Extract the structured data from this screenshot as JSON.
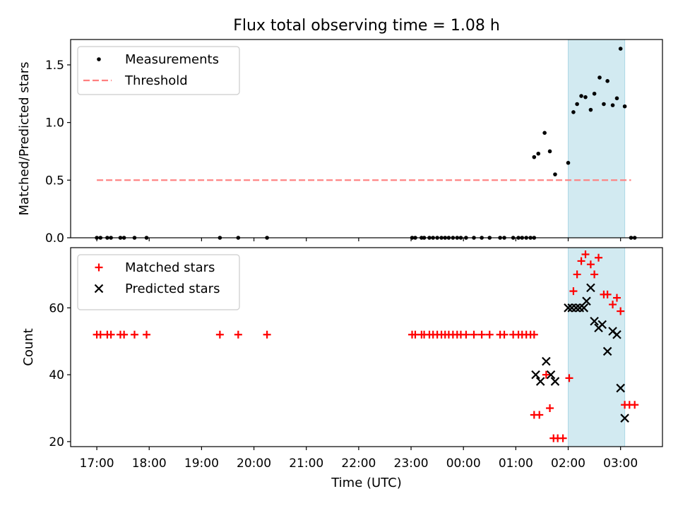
{
  "chart_data": {
    "title": "Flux total observing time = 1.08 h",
    "xlabel": "Time (UTC)",
    "x_ticks": [
      "17:00",
      "18:00",
      "19:00",
      "20:00",
      "21:00",
      "22:00",
      "23:00",
      "00:00",
      "01:00",
      "02:00",
      "03:00"
    ],
    "x_tick_hours": [
      0,
      1,
      2,
      3,
      4,
      5,
      6,
      7,
      8,
      9,
      10
    ],
    "x_range_hours": [
      -0.5,
      10.8
    ],
    "highlight_span_hours": [
      9.0,
      10.08
    ],
    "highlight_color": "#add8e6",
    "panels": [
      {
        "type": "scatter",
        "ylabel": "Matched/Predicted stars",
        "ylim": [
          0,
          1.72
        ],
        "y_ticks": [
          0.0,
          0.5,
          1.0,
          1.5
        ],
        "y_tick_labels": [
          "0.0",
          "0.5",
          "1.0",
          "1.5"
        ],
        "legend": [
          "Measurements",
          "Threshold"
        ],
        "threshold": {
          "name": "Threshold",
          "value": 0.5,
          "x_range": [
            0.0,
            10.2
          ],
          "color": "#ff7f7f",
          "style": "dashed"
        },
        "series": [
          {
            "name": "Measurements",
            "marker": "dot",
            "color": "#000000",
            "points": [
              [
                0.0,
                0
              ],
              [
                0.07,
                0
              ],
              [
                0.2,
                0
              ],
              [
                0.27,
                0
              ],
              [
                0.45,
                0
              ],
              [
                0.52,
                0
              ],
              [
                0.72,
                0
              ],
              [
                0.95,
                0
              ],
              [
                2.35,
                0
              ],
              [
                2.7,
                0
              ],
              [
                3.25,
                0
              ],
              [
                6.02,
                0
              ],
              [
                6.08,
                0
              ],
              [
                6.2,
                0
              ],
              [
                6.25,
                0
              ],
              [
                6.35,
                0
              ],
              [
                6.42,
                0
              ],
              [
                6.5,
                0
              ],
              [
                6.58,
                0
              ],
              [
                6.65,
                0
              ],
              [
                6.72,
                0
              ],
              [
                6.8,
                0
              ],
              [
                6.88,
                0
              ],
              [
                6.95,
                0
              ],
              [
                7.05,
                0
              ],
              [
                7.2,
                0
              ],
              [
                7.35,
                0
              ],
              [
                7.5,
                0
              ],
              [
                7.7,
                0
              ],
              [
                7.78,
                0
              ],
              [
                7.95,
                0
              ],
              [
                8.05,
                0
              ],
              [
                8.12,
                0
              ],
              [
                8.2,
                0
              ],
              [
                8.28,
                0
              ],
              [
                8.35,
                0
              ],
              [
                8.35,
                0.7
              ],
              [
                8.43,
                0.73
              ],
              [
                8.55,
                0.91
              ],
              [
                8.65,
                0.75
              ],
              [
                8.75,
                0.55
              ],
              [
                9.0,
                0.65
              ],
              [
                9.1,
                1.09
              ],
              [
                9.17,
                1.16
              ],
              [
                9.25,
                1.23
              ],
              [
                9.33,
                1.22
              ],
              [
                9.43,
                1.11
              ],
              [
                9.5,
                1.25
              ],
              [
                9.6,
                1.39
              ],
              [
                9.68,
                1.16
              ],
              [
                9.75,
                1.36
              ],
              [
                9.85,
                1.15
              ],
              [
                9.93,
                1.21
              ],
              [
                10.0,
                1.64
              ],
              [
                10.08,
                1.14
              ],
              [
                10.2,
                0
              ],
              [
                10.27,
                0
              ]
            ]
          }
        ]
      },
      {
        "type": "scatter",
        "ylabel": "Count",
        "ylim": [
          18.5,
          78
        ],
        "y_ticks": [
          20,
          40,
          60
        ],
        "y_tick_labels": [
          "20",
          "40",
          "60"
        ],
        "legend": [
          "Matched stars",
          "Predicted stars"
        ],
        "series": [
          {
            "name": "Matched stars",
            "marker": "plus",
            "color": "#ff0000",
            "points": [
              [
                0.0,
                52
              ],
              [
                0.07,
                52
              ],
              [
                0.2,
                52
              ],
              [
                0.27,
                52
              ],
              [
                0.45,
                52
              ],
              [
                0.52,
                52
              ],
              [
                0.72,
                52
              ],
              [
                0.95,
                52
              ],
              [
                2.35,
                52
              ],
              [
                2.7,
                52
              ],
              [
                3.25,
                52
              ],
              [
                6.02,
                52
              ],
              [
                6.08,
                52
              ],
              [
                6.2,
                52
              ],
              [
                6.25,
                52
              ],
              [
                6.35,
                52
              ],
              [
                6.42,
                52
              ],
              [
                6.5,
                52
              ],
              [
                6.58,
                52
              ],
              [
                6.65,
                52
              ],
              [
                6.72,
                52
              ],
              [
                6.8,
                52
              ],
              [
                6.88,
                52
              ],
              [
                6.95,
                52
              ],
              [
                7.05,
                52
              ],
              [
                7.2,
                52
              ],
              [
                7.35,
                52
              ],
              [
                7.5,
                52
              ],
              [
                7.7,
                52
              ],
              [
                7.78,
                52
              ],
              [
                7.95,
                52
              ],
              [
                8.05,
                52
              ],
              [
                8.12,
                52
              ],
              [
                8.2,
                52
              ],
              [
                8.28,
                52
              ],
              [
                8.35,
                52
              ],
              [
                8.35,
                28
              ],
              [
                8.45,
                28
              ],
              [
                8.58,
                40
              ],
              [
                8.65,
                30
              ],
              [
                8.72,
                21
              ],
              [
                8.8,
                21
              ],
              [
                8.9,
                21
              ],
              [
                9.02,
                39
              ],
              [
                9.1,
                65
              ],
              [
                9.17,
                70
              ],
              [
                9.25,
                74
              ],
              [
                9.33,
                76
              ],
              [
                9.43,
                73
              ],
              [
                9.5,
                70
              ],
              [
                9.58,
                75
              ],
              [
                9.68,
                64
              ],
              [
                9.75,
                64
              ],
              [
                9.85,
                61
              ],
              [
                9.93,
                63
              ],
              [
                10.0,
                59
              ],
              [
                10.08,
                31
              ],
              [
                10.17,
                31
              ],
              [
                10.27,
                31
              ]
            ]
          },
          {
            "name": "Predicted stars",
            "marker": "x",
            "color": "#000000",
            "points": [
              [
                8.38,
                40
              ],
              [
                8.47,
                38
              ],
              [
                8.58,
                44
              ],
              [
                8.67,
                40
              ],
              [
                8.75,
                38
              ],
              [
                9.0,
                60
              ],
              [
                9.07,
                60
              ],
              [
                9.15,
                60
              ],
              [
                9.22,
                60
              ],
              [
                9.3,
                60
              ],
              [
                9.35,
                62
              ],
              [
                9.43,
                66
              ],
              [
                9.5,
                56
              ],
              [
                9.58,
                54
              ],
              [
                9.65,
                55
              ],
              [
                9.75,
                47
              ],
              [
                9.85,
                53
              ],
              [
                9.93,
                52
              ],
              [
                10.0,
                36
              ],
              [
                10.08,
                27
              ]
            ]
          }
        ]
      }
    ]
  }
}
